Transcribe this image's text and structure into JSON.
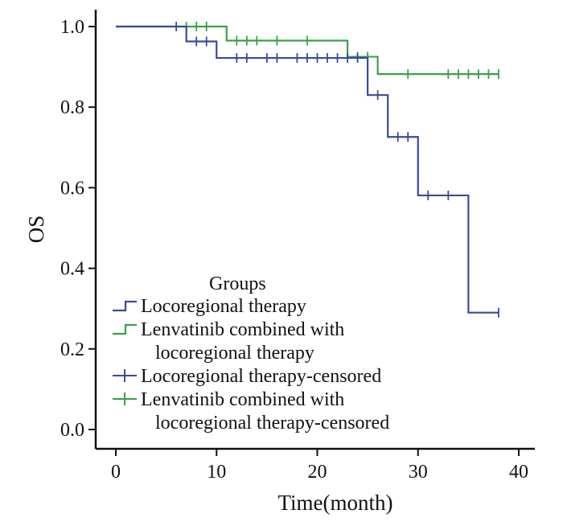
{
  "chart_data": {
    "type": "line",
    "subtype": "kaplan-meier",
    "title": "",
    "xlabel": "Time(month)",
    "ylabel": "OS",
    "xlim": [
      -2,
      41
    ],
    "ylim": [
      -0.07,
      1.05
    ],
    "xticks": [
      0,
      10,
      20,
      30,
      40
    ],
    "yticks": [
      0.0,
      0.2,
      0.4,
      0.6,
      0.8,
      1.0
    ],
    "xtick_labels": [
      "0",
      "10",
      "20",
      "30",
      "40"
    ],
    "ytick_labels": [
      "0.0",
      "0.2",
      "0.4",
      "0.6",
      "0.8",
      "1.0"
    ],
    "legend": {
      "title": "Groups",
      "position": "bottom-left",
      "entries": [
        {
          "lines": [
            "Locoregional therapy"
          ],
          "series": 0,
          "kind": "step"
        },
        {
          "lines": [
            "Lenvatinib combined with",
            "locoregional therapy"
          ],
          "series": 1,
          "kind": "step"
        },
        {
          "lines": [
            "Locoregional therapy-censored"
          ],
          "series": 0,
          "kind": "censor"
        },
        {
          "lines": [
            "Lenvatinib combined with",
            "locoregional therapy-censored"
          ],
          "series": 1,
          "kind": "censor"
        }
      ]
    },
    "series": [
      {
        "name": "Locoregional therapy",
        "color": "#3a4a9a",
        "steps": [
          [
            0,
            1.0
          ],
          [
            7,
            0.963
          ],
          [
            10,
            0.922
          ],
          [
            25,
            0.83
          ],
          [
            27,
            0.726
          ],
          [
            30,
            0.581
          ],
          [
            35,
            0.29
          ],
          [
            38,
            0.29
          ]
        ],
        "censored": [
          [
            6,
            1.0
          ],
          [
            8,
            0.963
          ],
          [
            9,
            0.963
          ],
          [
            12,
            0.922
          ],
          [
            13,
            0.922
          ],
          [
            15,
            0.922
          ],
          [
            16,
            0.922
          ],
          [
            18,
            0.922
          ],
          [
            19,
            0.922
          ],
          [
            20,
            0.922
          ],
          [
            21,
            0.922
          ],
          [
            22,
            0.922
          ],
          [
            23,
            0.922
          ],
          [
            24,
            0.922
          ],
          [
            26,
            0.83
          ],
          [
            28,
            0.726
          ],
          [
            29,
            0.726
          ],
          [
            31,
            0.581
          ],
          [
            33,
            0.581
          ],
          [
            38,
            0.29
          ]
        ]
      },
      {
        "name": "Lenvatinib combined with locoregional therapy",
        "color": "#3aa04a",
        "steps": [
          [
            0,
            1.0
          ],
          [
            11,
            0.965
          ],
          [
            23,
            0.925
          ],
          [
            26,
            0.882
          ],
          [
            38,
            0.882
          ]
        ],
        "censored": [
          [
            7,
            1.0
          ],
          [
            8,
            1.0
          ],
          [
            9,
            1.0
          ],
          [
            12,
            0.965
          ],
          [
            13,
            0.965
          ],
          [
            14,
            0.965
          ],
          [
            16,
            0.965
          ],
          [
            19,
            0.965
          ],
          [
            24,
            0.925
          ],
          [
            25,
            0.925
          ],
          [
            29,
            0.882
          ],
          [
            33,
            0.882
          ],
          [
            34,
            0.882
          ],
          [
            35,
            0.882
          ],
          [
            36,
            0.882
          ],
          [
            37,
            0.882
          ],
          [
            38,
            0.882
          ]
        ]
      }
    ]
  }
}
